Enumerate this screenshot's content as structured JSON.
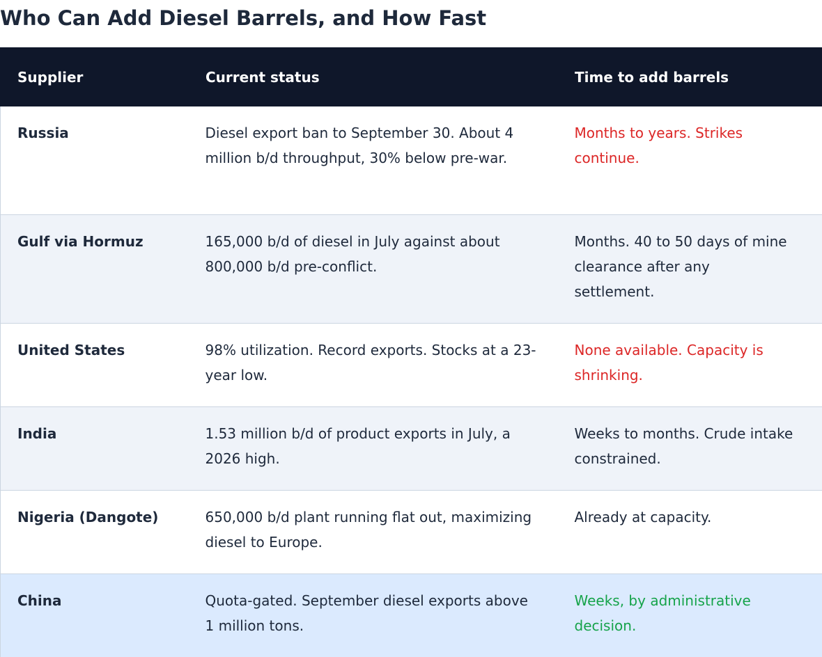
{
  "title": "Who Can Add Diesel Barrels, and How Fast",
  "headers": [
    "Supplier",
    "Current status",
    "Time to add barrels"
  ],
  "rows": [
    {
      "supplier": "Russia",
      "status": "Diesel export ban to September 30. About 4 million b/d throughput, 30% below pre-war.",
      "time": "Months to years. Strikes continue.",
      "time_color": "#dc2626"
    },
    {
      "supplier": "Gulf via Hormuz",
      "status": "165,000 b/d of diesel in July against about 800,000 b/d pre-conflict.",
      "time": "Months. 40 to 50 days of mine clearance after any settlement.",
      "time_color": "#1e293b"
    },
    {
      "supplier": "United States",
      "status": "98% utilization. Record exports. Stocks at a 23-year low.",
      "time": "None available. Capacity is shrinking.",
      "time_color": "#dc2626"
    },
    {
      "supplier": "India",
      "status": "1.53 million b/d of product exports in July, a 2026 high.",
      "time": "Weeks to months. Crude intake constrained.",
      "time_color": "#1e293b"
    },
    {
      "supplier": "Nigeria (Dangote)",
      "status": "650,000 b/d plant running flat out, maximizing diesel to Europe.",
      "time": "Already at capacity.",
      "time_color": "#1e293b"
    },
    {
      "supplier": "China",
      "status": "Quota-gated. September diesel exports above 1 million tons.",
      "time": "Weeks, by administrative decision.",
      "time_color": "#16a34a",
      "highlighted": true
    }
  ],
  "colors": {
    "header_bg": "#0f172a",
    "text": "#1e293b",
    "alt_row_bg": "#eff3f9",
    "highlight_row_bg": "#dbeafe",
    "red": "#dc2626",
    "green": "#16a34a"
  }
}
